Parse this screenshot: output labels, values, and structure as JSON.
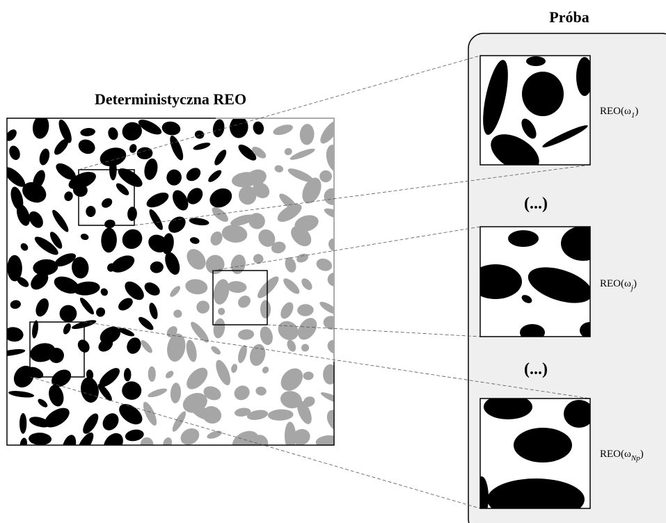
{
  "title": "Deterministyczna REO",
  "sample_title": "Próba",
  "ellipsis": [
    "(...)",
    "(...)"
  ],
  "samples": [
    {
      "text": "REO(ω",
      "subscript": "1",
      "suffix": ")"
    },
    {
      "text": "REO(ω",
      "subscript": "j",
      "suffix": ")"
    },
    {
      "text": "REO(ω",
      "subscript": "Np",
      "suffix": ")"
    }
  ]
}
